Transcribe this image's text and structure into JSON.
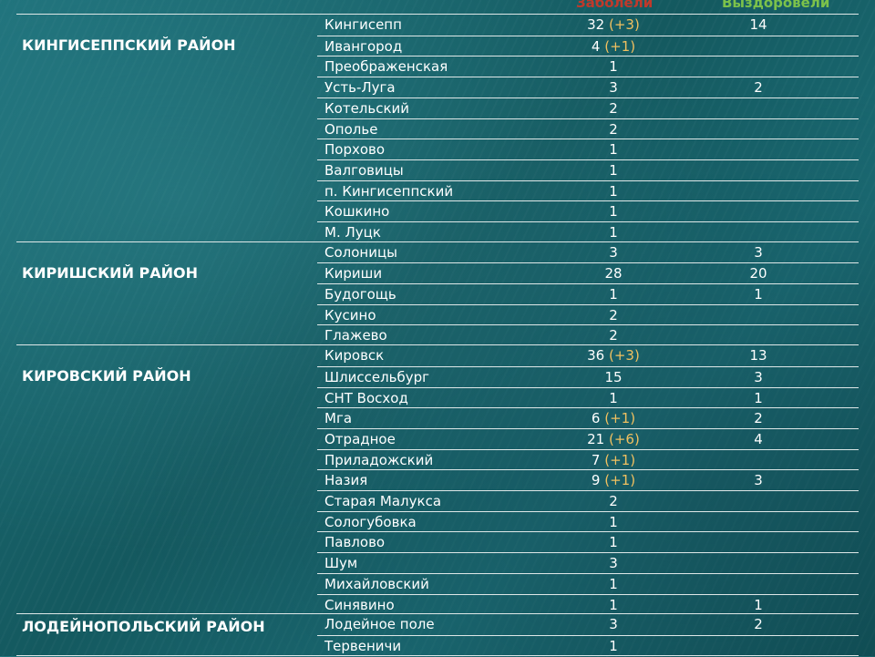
{
  "headers": {
    "sick": "Заболели",
    "recovered": "Выздоровели"
  },
  "groups": [
    {
      "district": "КИНГИСЕППСКИЙ РАЙОН",
      "rows": [
        {
          "name": "Кингисепп",
          "sick": "32",
          "delta": "(+3)",
          "recovered": "14"
        },
        {
          "name": "Ивангород",
          "sick": "4",
          "delta": "(+1)",
          "recovered": ""
        },
        {
          "name": "Преображенская",
          "sick": "1",
          "delta": "",
          "recovered": ""
        },
        {
          "name": "Усть-Луга",
          "sick": "3",
          "delta": "",
          "recovered": "2"
        },
        {
          "name": "Котельский",
          "sick": "2",
          "delta": "",
          "recovered": ""
        },
        {
          "name": "Ополье",
          "sick": "2",
          "delta": "",
          "recovered": ""
        },
        {
          "name": "Порхово",
          "sick": "1",
          "delta": "",
          "recovered": ""
        },
        {
          "name": "Валговицы",
          "sick": "1",
          "delta": "",
          "recovered": ""
        },
        {
          "name": "п. Кингисеппский",
          "sick": "1",
          "delta": "",
          "recovered": ""
        },
        {
          "name": "Кошкино",
          "sick": "1",
          "delta": "",
          "recovered": ""
        },
        {
          "name": "М. Луцк",
          "sick": "1",
          "delta": "",
          "recovered": ""
        }
      ]
    },
    {
      "district": "КИРИШСКИЙ РАЙОН",
      "rows": [
        {
          "name": "Солоницы",
          "sick": "3",
          "delta": "",
          "recovered": "3"
        },
        {
          "name": "Кириши",
          "sick": "28",
          "delta": "",
          "recovered": "20"
        },
        {
          "name": "Будогощь",
          "sick": "1",
          "delta": "",
          "recovered": "1"
        },
        {
          "name": "Кусино",
          "sick": "2",
          "delta": "",
          "recovered": ""
        },
        {
          "name": "Глажево",
          "sick": "2",
          "delta": "",
          "recovered": ""
        }
      ]
    },
    {
      "district": "КИРОВСКИЙ РАЙОН",
      "rows": [
        {
          "name": "Кировск",
          "sick": "36",
          "delta": "(+3)",
          "recovered": "13"
        },
        {
          "name": "Шлиссельбург",
          "sick": "15",
          "delta": "",
          "recovered": "3"
        },
        {
          "name": "СНТ Восход",
          "sick": "1",
          "delta": "",
          "recovered": "1"
        },
        {
          "name": "Мга",
          "sick": "6",
          "delta": "(+1)",
          "recovered": "2"
        },
        {
          "name": "Отрадное",
          "sick": "21",
          "delta": "(+6)",
          "recovered": "4"
        },
        {
          "name": "Приладожский",
          "sick": "7",
          "delta": "(+1)",
          "recovered": ""
        },
        {
          "name": "Назия",
          "sick": "9",
          "delta": "(+1)",
          "recovered": "3"
        },
        {
          "name": "Старая Малукса",
          "sick": "2",
          "delta": "",
          "recovered": ""
        },
        {
          "name": "Сологубовка",
          "sick": "1",
          "delta": "",
          "recovered": ""
        },
        {
          "name": "Павлово",
          "sick": "1",
          "delta": "",
          "recovered": ""
        },
        {
          "name": "Шум",
          "sick": "3",
          "delta": "",
          "recovered": ""
        },
        {
          "name": "Михайловский",
          "sick": "1",
          "delta": "",
          "recovered": ""
        },
        {
          "name": "Синявино",
          "sick": "1",
          "delta": "",
          "recovered": "1"
        }
      ]
    },
    {
      "district": "ЛОДЕЙНОПОЛЬСКИЙ РАЙОН",
      "rows": [
        {
          "name": "Лодейное поле",
          "sick": "3",
          "delta": "",
          "recovered": "2"
        },
        {
          "name": "Тервеничи",
          "sick": "1",
          "delta": "",
          "recovered": ""
        }
      ]
    }
  ]
}
